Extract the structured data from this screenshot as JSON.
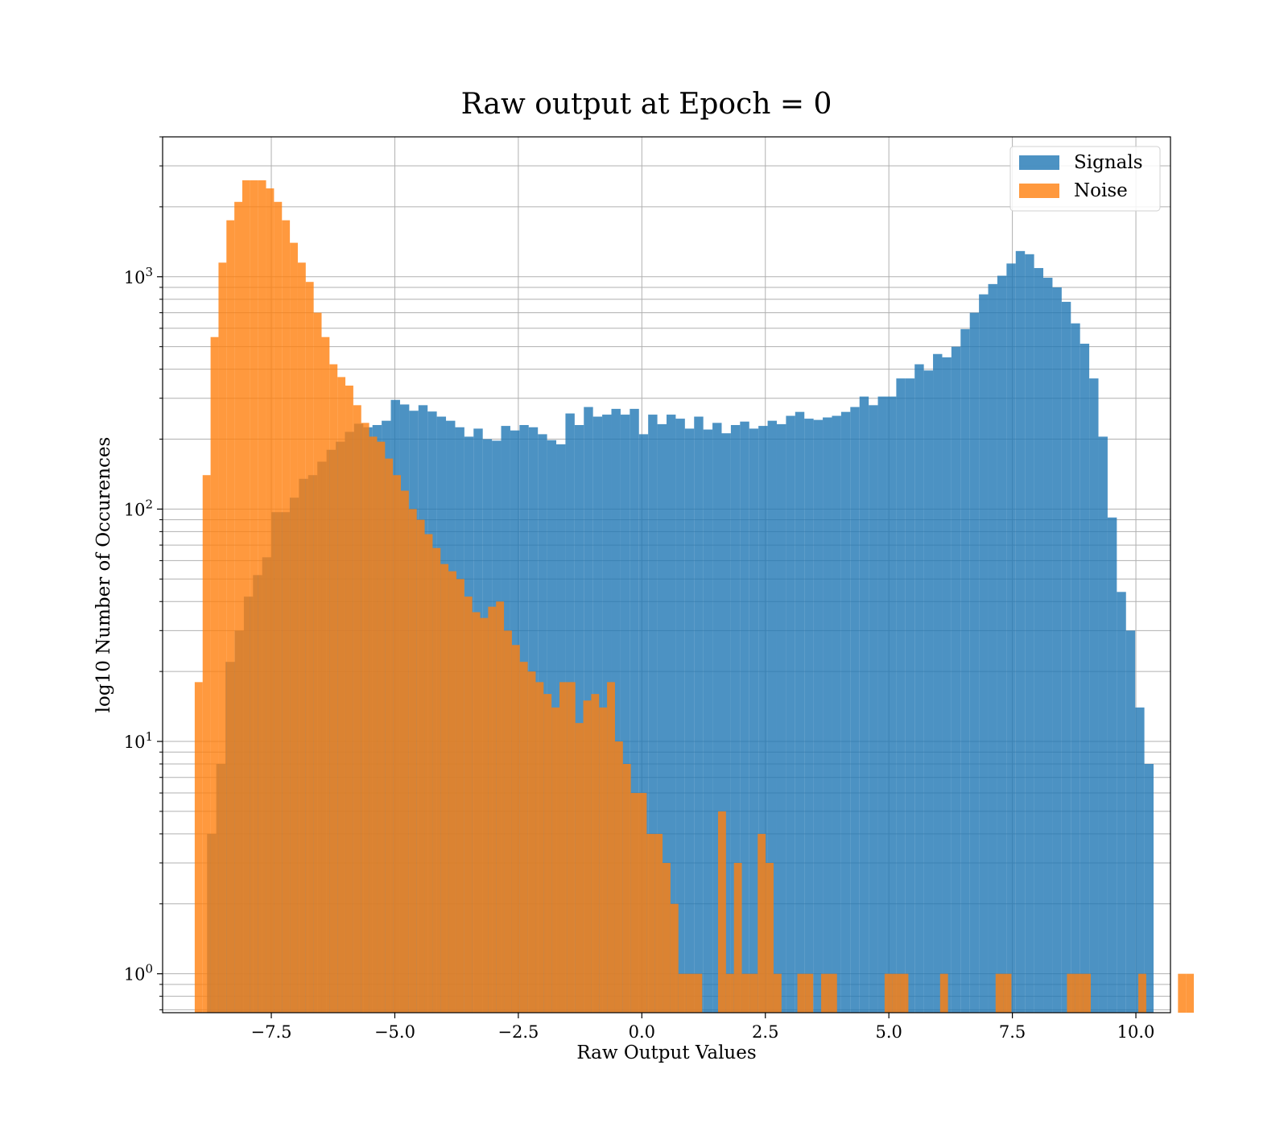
{
  "chart_data": {
    "type": "bar",
    "title": "Raw output at Epoch = 0",
    "xlabel": "Raw Output Values",
    "ylabel": "log10 Number of Occurences",
    "xlim": [
      -9.7,
      10.7
    ],
    "ylim": [
      0.68,
      4000
    ],
    "yscale": "log",
    "xticks": [
      -7.5,
      -5.0,
      -2.5,
      0.0,
      2.5,
      5.0,
      7.5,
      10.0
    ],
    "xtick_labels": [
      "−7.5",
      "−5.0",
      "−2.5",
      "0.0",
      "2.5",
      "5.0",
      "7.5",
      "10.0"
    ],
    "yticks": [
      {
        "value": 1,
        "base": "10",
        "exp": "0"
      },
      {
        "value": 10,
        "base": "10",
        "exp": "1"
      },
      {
        "value": 100,
        "base": "10",
        "exp": "2"
      },
      {
        "value": 1000,
        "base": "10",
        "exp": "3"
      }
    ],
    "grid": true,
    "legend_position": "top-right",
    "series": [
      {
        "name": "Signals",
        "color": "#1f77b4",
        "opacity": 0.8,
        "bin_start": -8.8,
        "bin_width": 0.186,
        "values": [
          4,
          8,
          22,
          30,
          42,
          52,
          62,
          97,
          97,
          112,
          135,
          140,
          160,
          180,
          195,
          215,
          233,
          225,
          230,
          240,
          295,
          282,
          265,
          280,
          263,
          250,
          240,
          225,
          205,
          222,
          200,
          197,
          228,
          218,
          230,
          225,
          210,
          198,
          190,
          258,
          230,
          275,
          250,
          255,
          270,
          255,
          270,
          210,
          255,
          232,
          255,
          245,
          222,
          250,
          220,
          235,
          212,
          230,
          238,
          222,
          228,
          240,
          232,
          252,
          262,
          245,
          242,
          248,
          252,
          262,
          275,
          305,
          280,
          305,
          305,
          365,
          365,
          420,
          395,
          465,
          450,
          500,
          595,
          700,
          840,
          930,
          1010,
          1140,
          1290,
          1250,
          1090,
          990,
          900,
          780,
          630,
          515,
          365,
          205,
          92,
          44,
          30,
          14,
          8
        ]
      },
      {
        "name": "Noise",
        "color": "#ff7f0e",
        "opacity": 0.8,
        "bin_start": -9.05,
        "bin_width": 0.1605,
        "values": [
          18,
          140,
          550,
          1150,
          1750,
          2100,
          2600,
          2600,
          2600,
          2400,
          2100,
          1750,
          1400,
          1150,
          950,
          700,
          550,
          420,
          370,
          340,
          280,
          235,
          205,
          195,
          165,
          140,
          120,
          100,
          90,
          78,
          68,
          58,
          54,
          50,
          42,
          36,
          34,
          38,
          40,
          30,
          26,
          22,
          20,
          18,
          16,
          14,
          18,
          18,
          12,
          15,
          16,
          14,
          18,
          10,
          8,
          6,
          6,
          4,
          4,
          3,
          2,
          1,
          1,
          1,
          0,
          0,
          5,
          1,
          3,
          1,
          1,
          4,
          3,
          1,
          0,
          0,
          1,
          1,
          0,
          1,
          1,
          0,
          0,
          0,
          0,
          0,
          0,
          1,
          1,
          1,
          0,
          0,
          0,
          0,
          1,
          0,
          0,
          0,
          0,
          0,
          0,
          1,
          1,
          0,
          0,
          0,
          0,
          0,
          0,
          0,
          1,
          1,
          1,
          0,
          0,
          0,
          0,
          0,
          0,
          1,
          0,
          0,
          0,
          0,
          1,
          1
        ]
      }
    ]
  }
}
